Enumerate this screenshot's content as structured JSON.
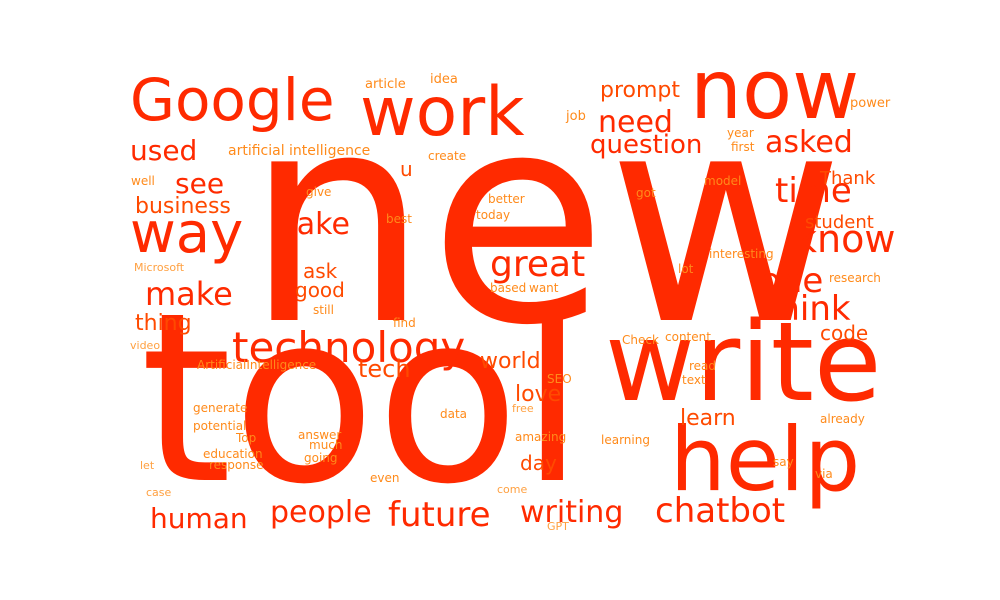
{
  "colors": {
    "large": "#ff2a00",
    "medium": "#ff4a00",
    "small": "#ff8a1a",
    "tiny": "#ffa040"
  },
  "words": [
    "new",
    "tool",
    "write",
    "help",
    "now",
    "work",
    "Google",
    "way",
    "technology",
    "great",
    "know",
    "time",
    "one",
    "think",
    "chatbot",
    "future",
    "writing",
    "people",
    "human",
    "make",
    "see",
    "take",
    "need",
    "asked",
    "question",
    "used",
    "prompt",
    "tech",
    "world",
    "love",
    "learn",
    "day",
    "business",
    "thing",
    "ask",
    "good",
    "code",
    "student",
    "Thank",
    "u",
    "artificial intelligence",
    "create",
    "article",
    "idea",
    "job",
    "power",
    "year",
    "first",
    "well",
    "give",
    "better",
    "got",
    "model",
    "best",
    "today",
    "Microsoft",
    "lot",
    "interesting",
    "research",
    "based",
    "want",
    "still",
    "find",
    "video",
    "ArtificialIntelligence",
    "Check",
    "content",
    "read",
    "text",
    "SEO",
    "data",
    "free",
    "generate",
    "potential",
    "Top",
    "answer",
    "much",
    "amazing",
    "learning",
    "already",
    "education",
    "response",
    "going",
    "let",
    "say",
    "via",
    "case",
    "even",
    "come",
    "GPT"
  ]
}
